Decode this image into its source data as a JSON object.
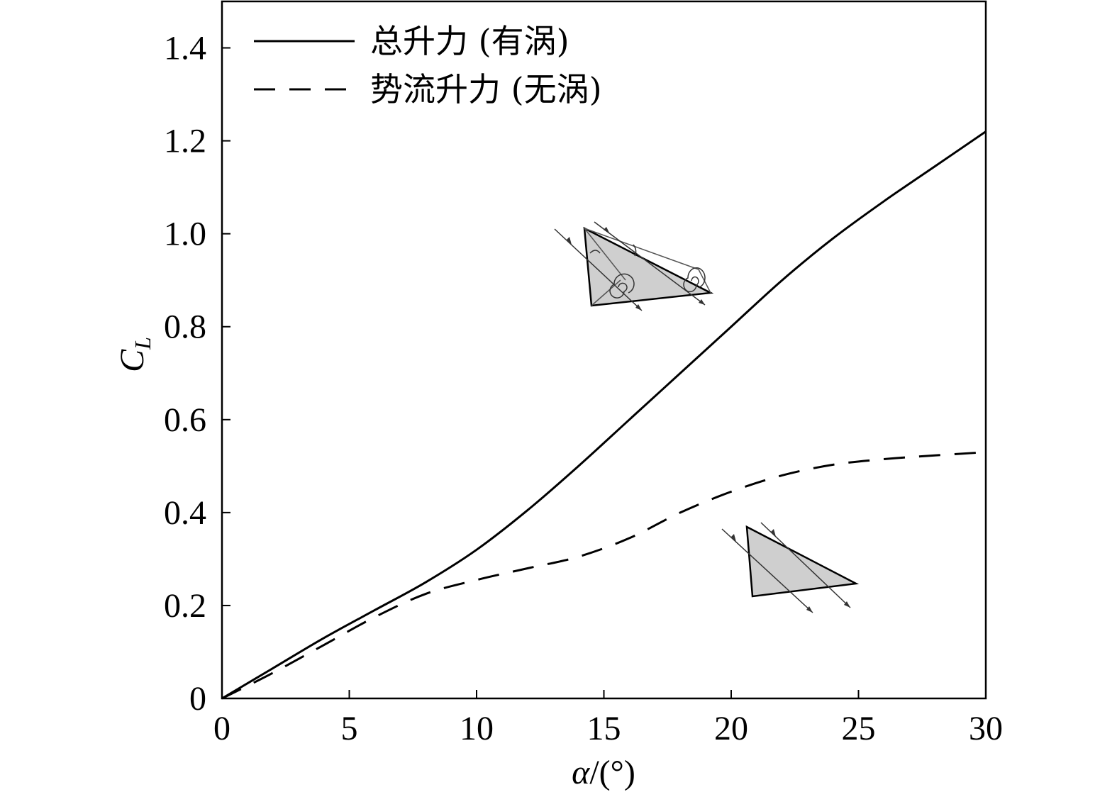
{
  "chart_data": {
    "type": "line",
    "title": "",
    "xlabel": {
      "symbol": "α",
      "unit": "/(°)"
    },
    "ylabel": {
      "symbol": "C",
      "subscript": "L"
    },
    "xlim": [
      0,
      30
    ],
    "ylim": [
      0,
      1.5
    ],
    "x_ticks": [
      0,
      5,
      10,
      15,
      20,
      25,
      30
    ],
    "x_tick_labels": [
      "0",
      "5",
      "10",
      "15",
      "20",
      "25",
      "30"
    ],
    "y_ticks": [
      0,
      0.2,
      0.4,
      0.6,
      0.8,
      1.0,
      1.2,
      1.4
    ],
    "y_tick_labels": [
      "0",
      "0.2",
      "0.4",
      "0.6",
      "0.8",
      "1.0",
      "1.2",
      "1.4"
    ],
    "grid": false,
    "legend_position": "top-left",
    "series": [
      {
        "name": "总升力 (有涡)",
        "style": "solid",
        "color": "#000000",
        "x": [
          0,
          2,
          4,
          6,
          8,
          10,
          12,
          14,
          16,
          18,
          20,
          22,
          24,
          26,
          28,
          30
        ],
        "y": [
          0,
          0.065,
          0.13,
          0.19,
          0.25,
          0.32,
          0.405,
          0.5,
          0.6,
          0.7,
          0.8,
          0.9,
          0.99,
          1.07,
          1.145,
          1.22
        ]
      },
      {
        "name": "势流升力 (无涡)",
        "style": "dashed",
        "color": "#000000",
        "x": [
          0,
          2,
          4,
          6,
          8,
          10,
          12,
          14,
          16,
          18,
          20,
          22,
          24,
          26,
          28,
          30
        ],
        "y": [
          0,
          0.055,
          0.115,
          0.175,
          0.225,
          0.255,
          0.28,
          0.305,
          0.345,
          0.4,
          0.445,
          0.48,
          0.503,
          0.515,
          0.523,
          0.53
        ]
      }
    ]
  }
}
